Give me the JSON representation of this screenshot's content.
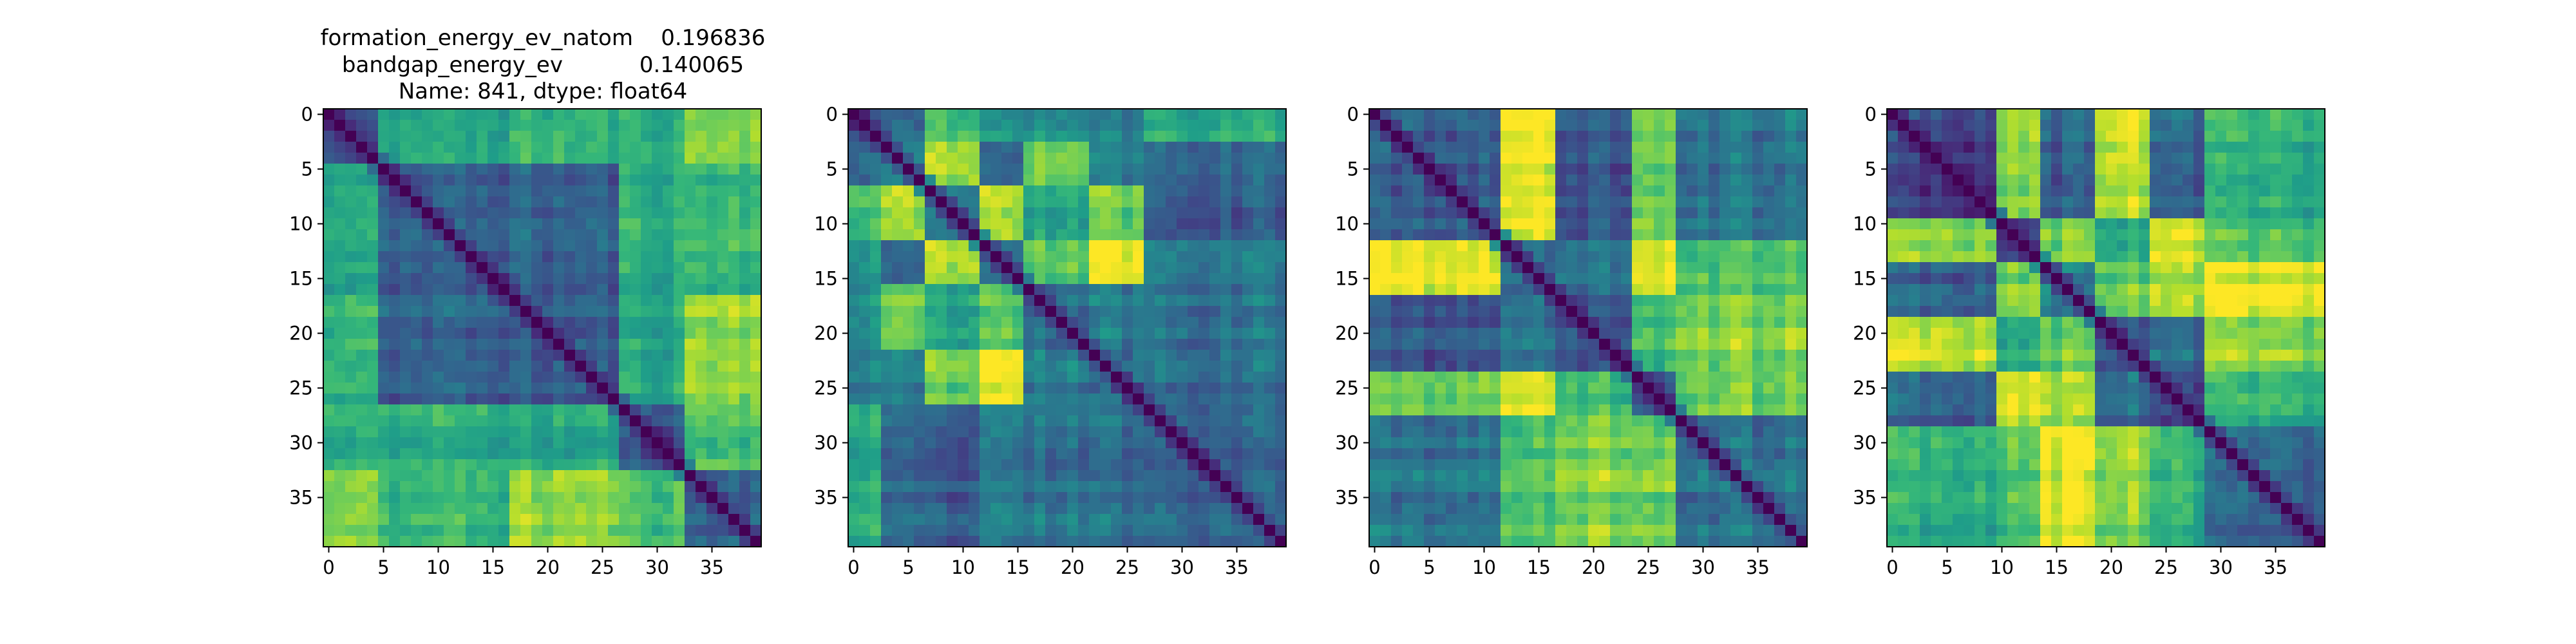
{
  "title_lines": [
    "formation_energy_ev_natom    0.196836",
    "bandgap_energy_ev           0.140065",
    "Name: 841, dtype: float64"
  ],
  "chart_data": [
    {
      "type": "heatmap",
      "title": "formation_energy_ev_natom    0.196836\nbandgap_energy_ev           0.140065\nName: 841, dtype: float64",
      "matrix_size": 40,
      "colormap": "viridis",
      "diagonal_value": 0,
      "grid": false,
      "xticks": [
        0,
        5,
        10,
        15,
        20,
        25,
        30,
        35
      ],
      "yticks": [
        0,
        5,
        10,
        15,
        20,
        25,
        30,
        35
      ],
      "xlim": [
        -0.5,
        39.5
      ],
      "ylim": [
        39.5,
        -0.5
      ],
      "xlabel": "",
      "ylabel": "",
      "block_boundaries": [
        5,
        17,
        27,
        33
      ],
      "seed": 11
    },
    {
      "type": "heatmap",
      "title": "",
      "matrix_size": 40,
      "colormap": "viridis",
      "diagonal_value": 0,
      "grid": false,
      "xticks": [
        0,
        5,
        10,
        15,
        20,
        25,
        30,
        35
      ],
      "yticks": [
        0,
        5,
        10,
        15,
        20,
        25,
        30,
        35
      ],
      "xlim": [
        -0.5,
        39.5
      ],
      "ylim": [
        39.5,
        -0.5
      ],
      "xlabel": "",
      "ylabel": "",
      "block_boundaries": [
        3,
        7,
        12,
        16,
        22,
        27
      ],
      "seed": 23
    },
    {
      "type": "heatmap",
      "title": "",
      "matrix_size": 40,
      "colormap": "viridis",
      "diagonal_value": 0,
      "grid": false,
      "xticks": [
        0,
        5,
        10,
        15,
        20,
        25,
        30,
        35
      ],
      "yticks": [
        0,
        5,
        10,
        15,
        20,
        25,
        30,
        35
      ],
      "xlim": [
        -0.5,
        39.5
      ],
      "ylim": [
        39.5,
        -0.5
      ],
      "xlabel": "",
      "ylabel": "",
      "block_boundaries": [
        12,
        17,
        24,
        28
      ],
      "seed": 37
    },
    {
      "type": "heatmap",
      "title": "",
      "matrix_size": 40,
      "colormap": "viridis",
      "diagonal_value": 0,
      "grid": false,
      "xticks": [
        0,
        5,
        10,
        15,
        20,
        25,
        30,
        35
      ],
      "yticks": [
        0,
        5,
        10,
        15,
        20,
        25,
        30,
        35
      ],
      "xlim": [
        -0.5,
        39.5
      ],
      "ylim": [
        39.5,
        -0.5
      ],
      "xlabel": "",
      "ylabel": "",
      "block_boundaries": [
        10,
        14,
        19,
        24,
        29
      ],
      "seed": 53
    }
  ]
}
